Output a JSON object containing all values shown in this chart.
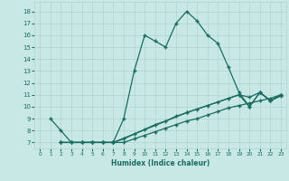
{
  "bg_color": "#c8e8e5",
  "grid_color": "#b0d5d0",
  "line_color": "#1a6b60",
  "line1_x": [
    1,
    2,
    3,
    4,
    5,
    6,
    7,
    8,
    9,
    10,
    11,
    12,
    13,
    14,
    15,
    16,
    17,
    18,
    19,
    20,
    21,
    22,
    23
  ],
  "line1_y": [
    9,
    8,
    7,
    7,
    7,
    7,
    7,
    9,
    13,
    16,
    15.5,
    15,
    17,
    18,
    17.2,
    16,
    15.3,
    13.3,
    11.2,
    10,
    11.2,
    10.5,
    11
  ],
  "line2_x": [
    2,
    7,
    14,
    19,
    20,
    21,
    22,
    23
  ],
  "line2_y": [
    7,
    7,
    9.5,
    11,
    10,
    11.2,
    10.5,
    11
  ],
  "line3_x": [
    2,
    3,
    4,
    5,
    6,
    7,
    8,
    9,
    10,
    11,
    12,
    13,
    14,
    15,
    16,
    17,
    18,
    19,
    20,
    21,
    22,
    23
  ],
  "line3_y": [
    7,
    7,
    7,
    7,
    7,
    7,
    7.3,
    7.7,
    8.1,
    8.5,
    8.8,
    9.2,
    9.5,
    9.8,
    10.1,
    10.4,
    10.7,
    11.0,
    10.8,
    11.2,
    10.5,
    10.9
  ],
  "line4_x": [
    2,
    3,
    4,
    5,
    6,
    7,
    8,
    9,
    10,
    11,
    12,
    13,
    14,
    15,
    16,
    17,
    18,
    19,
    20,
    21,
    22,
    23
  ],
  "line4_y": [
    7,
    7,
    7,
    7,
    7,
    7,
    7.0,
    7.3,
    7.6,
    7.9,
    8.2,
    8.5,
    8.8,
    9.0,
    9.3,
    9.6,
    9.9,
    10.1,
    10.3,
    10.5,
    10.7,
    11.0
  ],
  "xlim": [
    -0.5,
    23.5
  ],
  "ylim": [
    6.5,
    18.8
  ],
  "yticks": [
    7,
    8,
    9,
    10,
    11,
    12,
    13,
    14,
    15,
    16,
    17,
    18
  ],
  "xticks": [
    0,
    1,
    2,
    3,
    4,
    5,
    6,
    7,
    8,
    9,
    10,
    11,
    12,
    13,
    14,
    15,
    16,
    17,
    18,
    19,
    20,
    21,
    22,
    23
  ],
  "xlabel": "Humidex (Indice chaleur)"
}
